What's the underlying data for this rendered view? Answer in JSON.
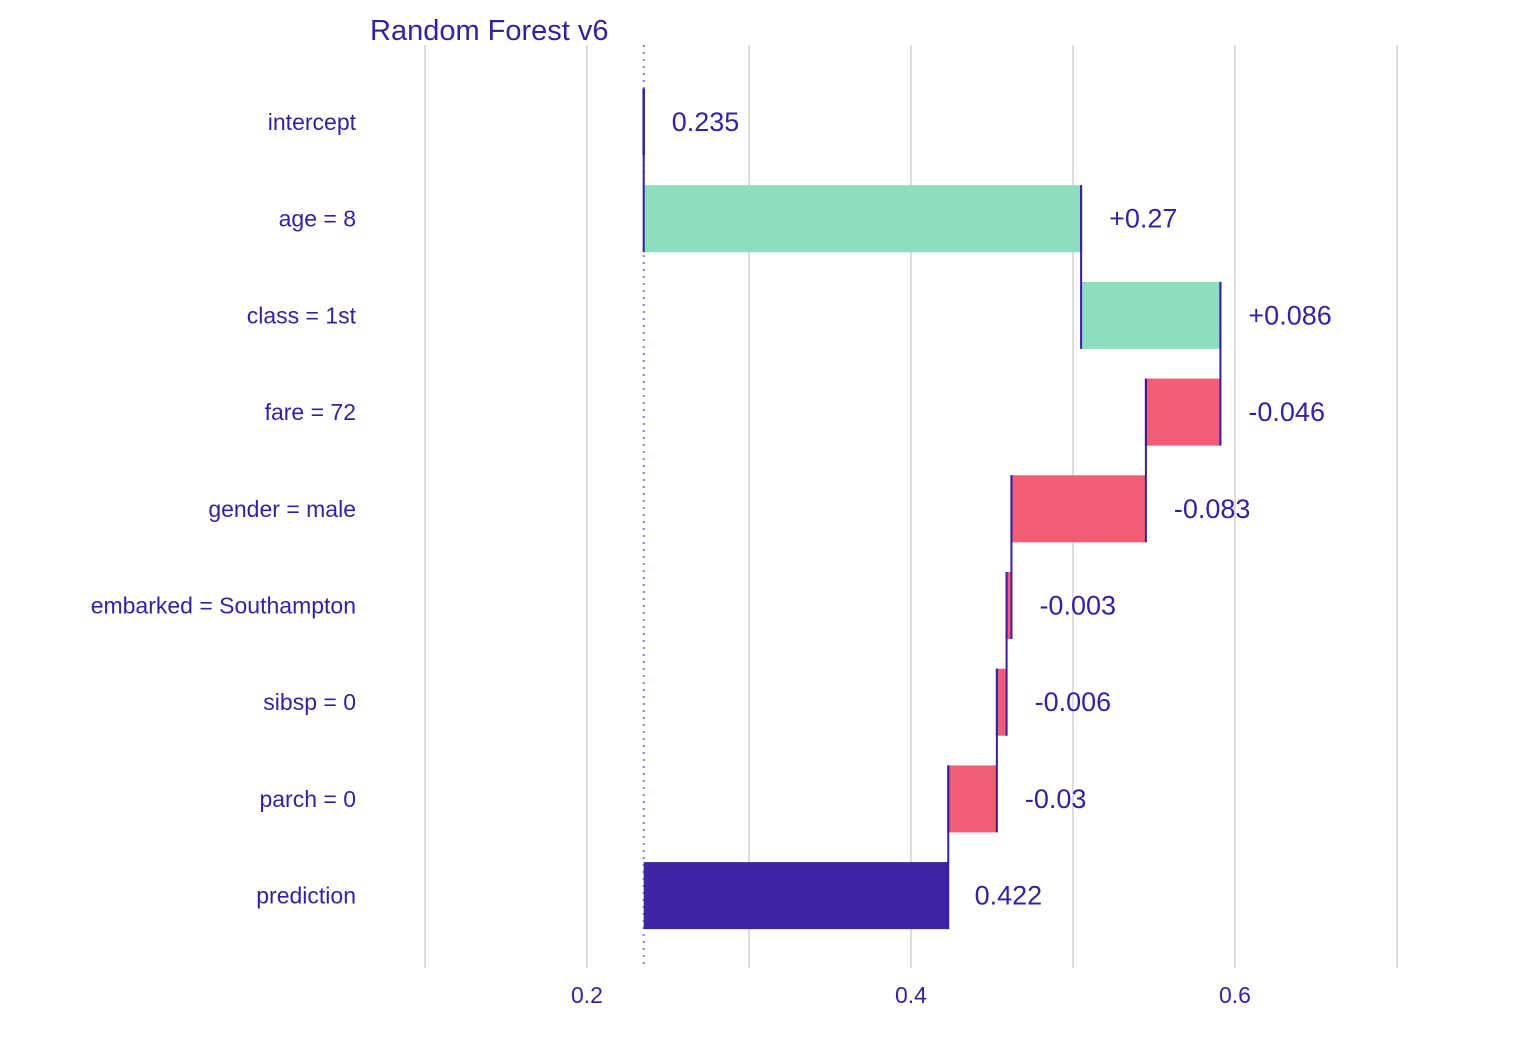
{
  "chart_data": {
    "type": "waterfall",
    "title": "Random Forest v6",
    "xlabel": "",
    "ylabel": "",
    "xlim": [
      0.1,
      0.7
    ],
    "x_ticks": [
      0.2,
      0.4,
      0.6
    ],
    "x_tick_labels": [
      "0.2",
      "0.4",
      "0.6"
    ],
    "grid": true,
    "baseline": 0.235,
    "categories": [
      "intercept",
      "age = 8",
      "class = 1st",
      "fare = 72",
      "gender = male",
      "embarked = Southampton",
      "sibsp = 0",
      "parch = 0",
      "prediction"
    ],
    "contributions": [
      0.235,
      0.27,
      0.086,
      -0.046,
      -0.083,
      -0.003,
      -0.006,
      -0.03,
      0.422
    ],
    "value_labels": [
      "0.235",
      "+0.27",
      "+0.086",
      "-0.046",
      "-0.083",
      "-0.003",
      "-0.006",
      "-0.03",
      "0.422"
    ],
    "colors": {
      "positive": "#8bdcbe",
      "negative": "#f05a71",
      "prediction": "#371ea3",
      "text": "#371ea3",
      "grid": "#dddddd"
    }
  }
}
